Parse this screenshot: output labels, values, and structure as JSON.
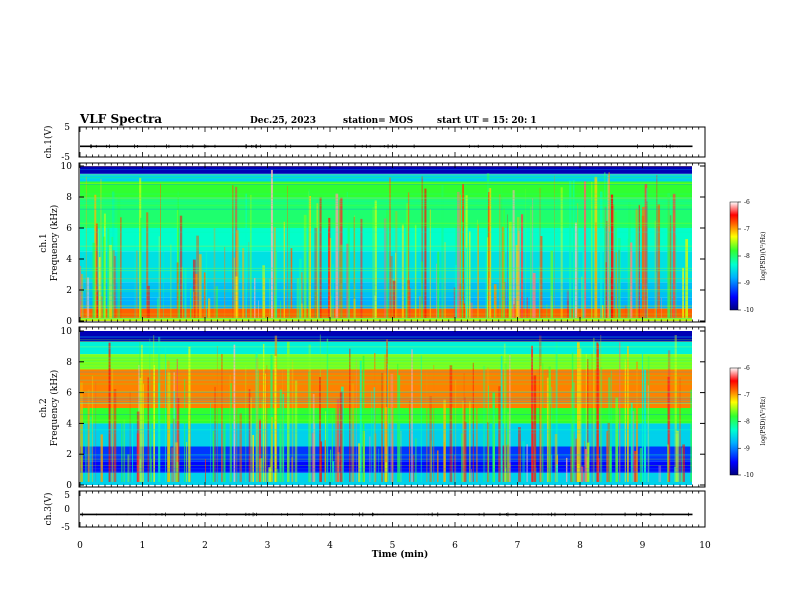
{
  "header": {
    "title": "VLF Spectra",
    "date": "Dec.25, 2023",
    "station": "station= MOS",
    "start": "start  UT =   15: 20: 1"
  },
  "chart_data": [
    {
      "type": "line",
      "panel": "ch1-waveform",
      "ylabel": "ch.1(V)",
      "ylim": [
        -5,
        5
      ],
      "yticks": [
        "5",
        "-5"
      ],
      "x": [
        0,
        9.8
      ],
      "values": [
        -1.8,
        -1.8
      ]
    },
    {
      "type": "heatmap",
      "panel": "ch1-spectrogram",
      "ylabel": "ch.1",
      "ylabel2": "Frequency (kHz)",
      "ylim": [
        0,
        10
      ],
      "yticks": [
        "10",
        "8",
        "6",
        "4",
        "2",
        "0"
      ],
      "x_range_min": [
        0,
        9.8
      ],
      "colorbar": {
        "label": "log(PSD)(V²/Hz)",
        "ticks": [
          "-6",
          "-7",
          "-8",
          "-9",
          "-10"
        ],
        "range": [
          -10,
          -6
        ]
      },
      "bands_khz_level": [
        [
          0.0,
          0.2,
          -7.5
        ],
        [
          0.2,
          0.8,
          -6.8
        ],
        [
          0.8,
          1.5,
          -8.8
        ],
        [
          1.5,
          2.5,
          -8.7
        ],
        [
          2.5,
          4.5,
          -8.5
        ],
        [
          4.5,
          6.0,
          -8.3
        ],
        [
          6.0,
          8.0,
          -8.0
        ],
        [
          8.0,
          9.0,
          -7.8
        ],
        [
          9.0,
          9.5,
          -8.6
        ],
        [
          9.5,
          10.0,
          -9.8
        ]
      ]
    },
    {
      "type": "heatmap",
      "panel": "ch2-spectrogram",
      "ylabel": "ch.2",
      "ylabel2": "Frequency (kHz)",
      "ylim": [
        0,
        10
      ],
      "yticks": [
        "10",
        "8",
        "6",
        "4",
        "2",
        "0"
      ],
      "x_range_min": [
        0,
        9.8
      ],
      "colorbar": {
        "label": "log(PSD)(V²/Hz)",
        "ticks": [
          "-6",
          "-7",
          "-8",
          "-9",
          "-10"
        ],
        "range": [
          -10,
          -6
        ]
      },
      "bands_khz_level": [
        [
          0.0,
          0.8,
          -8.6
        ],
        [
          0.8,
          1.5,
          -9.5
        ],
        [
          1.5,
          2.5,
          -9.3
        ],
        [
          2.5,
          4.0,
          -8.6
        ],
        [
          4.0,
          5.0,
          -7.8
        ],
        [
          5.0,
          7.5,
          -6.9
        ],
        [
          7.5,
          8.5,
          -7.6
        ],
        [
          8.5,
          9.3,
          -8.4
        ],
        [
          9.3,
          10.0,
          -9.8
        ]
      ]
    },
    {
      "type": "line",
      "panel": "ch3-waveform",
      "ylabel": "ch.3(V)",
      "ylim": [
        -5,
        5
      ],
      "yticks": [
        "5",
        "0",
        "-5"
      ],
      "x": [
        0,
        9.8
      ],
      "values": [
        -1.8,
        -1.8
      ]
    }
  ],
  "xaxis": {
    "label": "Time (min)",
    "ticks": [
      "0",
      "1",
      "2",
      "3",
      "4",
      "5",
      "6",
      "7",
      "8",
      "9",
      "10"
    ],
    "range": [
      0,
      10
    ]
  }
}
